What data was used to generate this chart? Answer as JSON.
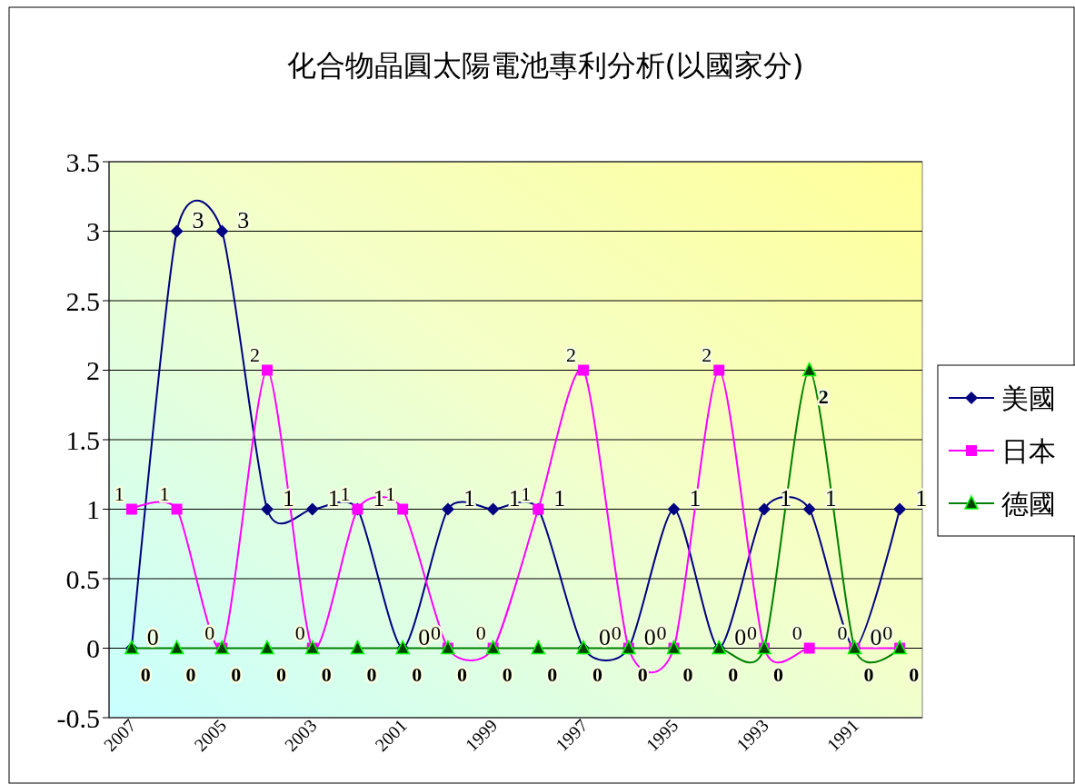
{
  "chart_data": {
    "type": "line",
    "title": "化合物晶圓太陽電池專利分析(以國家分)",
    "categories": [
      "2007",
      null,
      "2005",
      null,
      "2003",
      null,
      "2001",
      null,
      "1999",
      null,
      "1997",
      null,
      "1995",
      null,
      "1993",
      null,
      "1991",
      null
    ],
    "series": [
      {
        "name": "美國",
        "color": "#000080",
        "marker": "diamond",
        "values": [
          0,
          3,
          3,
          1,
          1,
          1,
          0,
          1,
          1,
          1,
          0,
          0,
          1,
          0,
          1,
          1,
          0,
          1
        ]
      },
      {
        "name": "日本",
        "color": "#ff00ff",
        "marker": "square",
        "values": [
          1,
          1,
          0,
          2,
          0,
          1,
          1,
          0,
          0,
          1,
          2,
          0,
          0,
          2,
          0,
          0,
          0,
          0
        ]
      },
      {
        "name": "德國",
        "color": "#008000",
        "marker": "triangle",
        "values": [
          0,
          0,
          0,
          0,
          0,
          0,
          0,
          0,
          0,
          0,
          0,
          0,
          0,
          0,
          0,
          2,
          0,
          0
        ]
      }
    ],
    "ylim": [
      -0.5,
      3.5
    ],
    "yticks": [
      -0.5,
      0,
      0.5,
      1,
      1.5,
      2,
      2.5,
      3,
      3.5
    ],
    "grid": "y",
    "legend": "right",
    "data_labels": true
  }
}
